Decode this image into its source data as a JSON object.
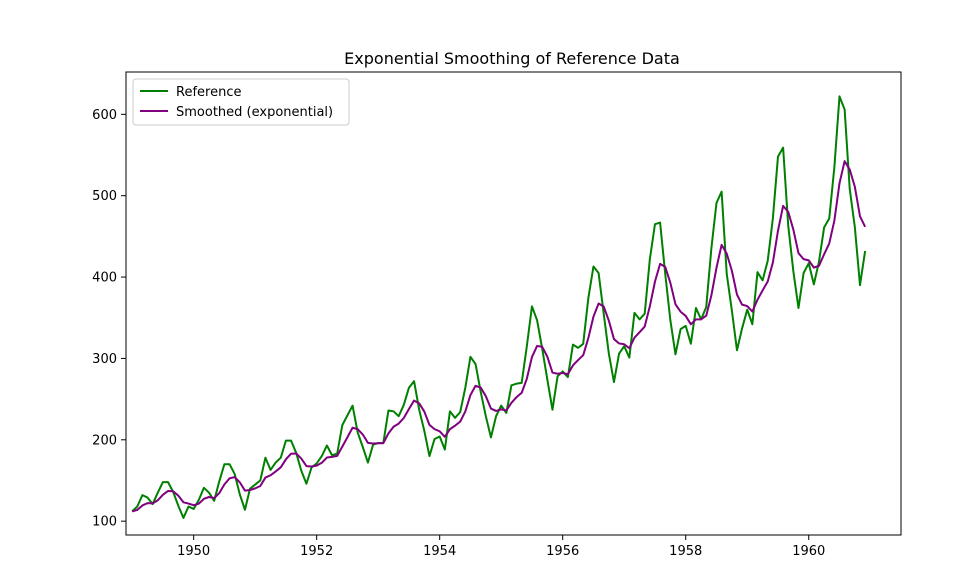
{
  "chart_data": {
    "type": "line",
    "title": "Exponential Smoothing of Reference Data",
    "xlabel": "",
    "ylabel": "",
    "xlim": [
      1948.9,
      1961.5
    ],
    "ylim": [
      83,
      652
    ],
    "x_ticks": [
      1950,
      1952,
      1954,
      1956,
      1958,
      1960
    ],
    "x_tick_labels": [
      "1950",
      "1952",
      "1954",
      "1956",
      "1958",
      "1960"
    ],
    "y_ticks": [
      100,
      200,
      300,
      400,
      500,
      600
    ],
    "y_tick_labels": [
      "100",
      "200",
      "300",
      "400",
      "500",
      "600"
    ],
    "grid": false,
    "legend_position": "upper-left",
    "x_start": 1949.0,
    "x_step": 0.08333333,
    "series": [
      {
        "name": "Reference",
        "color": "#008000",
        "values": [
          112,
          118,
          132,
          129,
          121,
          135,
          148,
          148,
          136,
          119,
          104,
          118,
          115,
          126,
          141,
          135,
          125,
          149,
          170,
          170,
          158,
          133,
          114,
          140,
          145,
          150,
          178,
          163,
          172,
          178,
          199,
          199,
          184,
          162,
          146,
          166,
          171,
          180,
          193,
          181,
          183,
          218,
          230,
          242,
          209,
          191,
          172,
          194,
          196,
          196,
          236,
          235,
          229,
          243,
          264,
          272,
          237,
          211,
          180,
          201,
          204,
          188,
          235,
          227,
          234,
          264,
          302,
          293,
          259,
          229,
          203,
          229,
          242,
          233,
          267,
          269,
          270,
          315,
          364,
          347,
          312,
          274,
          237,
          278,
          284,
          277,
          317,
          313,
          318,
          374,
          413,
          405,
          355,
          306,
          271,
          306,
          315,
          301,
          356,
          348,
          355,
          422,
          465,
          467,
          404,
          347,
          305,
          336,
          340,
          318,
          362,
          348,
          363,
          435,
          491,
          505,
          404,
          359,
          310,
          337,
          360,
          342,
          406,
          396,
          420,
          472,
          548,
          559,
          463,
          407,
          362,
          405,
          417,
          391,
          419,
          461,
          472,
          535,
          622,
          606,
          508,
          461,
          390,
          432
        ]
      },
      {
        "name": "Smoothed (exponential)",
        "color": "#800080",
        "values": [
          112.0,
          113.8,
          119.3,
          122.2,
          121.8,
          125.7,
          132.4,
          137.1,
          136.8,
          131.4,
          123.2,
          121.6,
          119.6,
          121.5,
          127.4,
          129.7,
          128.3,
          134.5,
          145.2,
          152.6,
          154.2,
          147.8,
          137.6,
          138.3,
          140.3,
          143.2,
          153.6,
          156.4,
          161.1,
          166.2,
          176.0,
          182.9,
          183.2,
          176.9,
          167.7,
          167.2,
          168.3,
          171.8,
          178.2,
          179.0,
          180.2,
          191.6,
          203.1,
          214.8,
          213.1,
          206.5,
          196.2,
          195.5,
          195.7,
          195.8,
          207.9,
          216.0,
          219.9,
          226.8,
          237.9,
          248.2,
          244.8,
          234.7,
          218.3,
          213.1,
          210.4,
          203.7,
          213.1,
          217.3,
          222.3,
          234.8,
          255.0,
          266.4,
          264.2,
          253.6,
          238.4,
          235.5,
          237.4,
          236.1,
          245.4,
          252.5,
          257.8,
          275.0,
          301.7,
          315.3,
          314.3,
          302.2,
          282.6,
          281.2,
          282.1,
          280.6,
          291.5,
          298.0,
          304.0,
          325.0,
          351.4,
          367.5,
          363.8,
          346.4,
          323.8,
          318.4,
          317.4,
          312.5,
          325.5,
          332.3,
          339.2,
          364.1,
          394.4,
          416.2,
          412.5,
          392.9,
          366.5,
          357.4,
          352.2,
          341.9,
          348.0,
          348.0,
          352.5,
          377.3,
          411.4,
          439.5,
          428.8,
          407.9,
          378.5,
          366.1,
          364.3,
          357.6,
          372.1,
          383.6,
          394.5,
          417.8,
          456.9,
          487.5,
          480.1,
          458.2,
          429.3,
          422.0,
          420.5,
          411.6,
          413.8,
          428.0,
          441.3,
          469.4,
          515.2,
          542.5,
          532.1,
          510.8,
          474.6,
          461.8
        ]
      }
    ]
  }
}
